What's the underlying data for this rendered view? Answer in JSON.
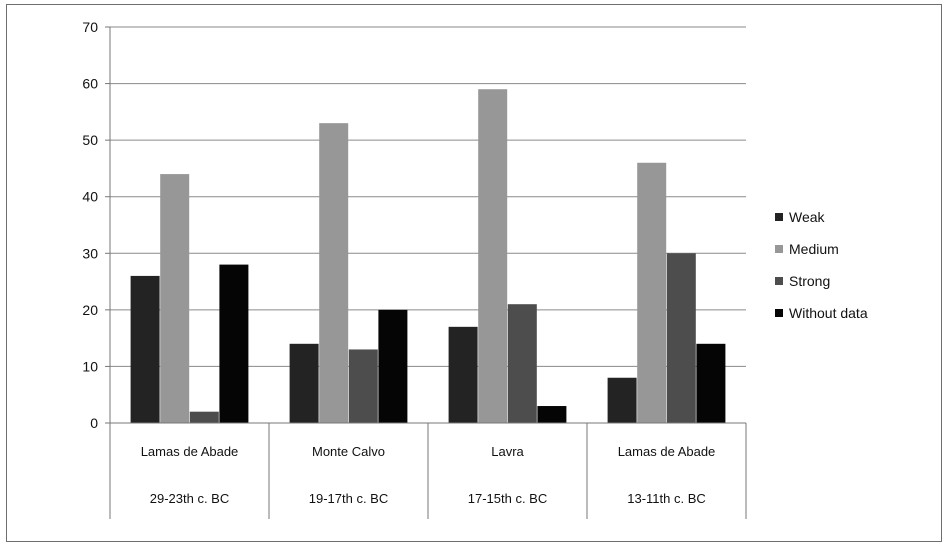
{
  "chart_data": {
    "type": "bar",
    "title": "",
    "xlabel": "",
    "ylabel": "",
    "ylim": [
      0,
      70
    ],
    "yticks": [
      0,
      10,
      20,
      30,
      40,
      50,
      60,
      70
    ],
    "grid": true,
    "legend_position": "right",
    "categories": [
      {
        "site": "Lamas de Abade",
        "period": "29-23th c. BC"
      },
      {
        "site": "Monte Calvo",
        "period": "19-17th c. BC"
      },
      {
        "site": "Lavra",
        "period": "17-15th c. BC"
      },
      {
        "site": "Lamas de Abade",
        "period": "13-11th c. BC"
      }
    ],
    "series": [
      {
        "name": "Weak",
        "color": "#232323",
        "values": [
          26,
          14,
          17,
          8
        ]
      },
      {
        "name": "Medium",
        "color": "#979797",
        "values": [
          44,
          53,
          59,
          46
        ]
      },
      {
        "name": "Strong",
        "color": "#4d4d4d",
        "values": [
          2,
          13,
          21,
          30
        ]
      },
      {
        "name": "Without data",
        "color": "#050505",
        "values": [
          28,
          20,
          3,
          14
        ]
      }
    ]
  }
}
